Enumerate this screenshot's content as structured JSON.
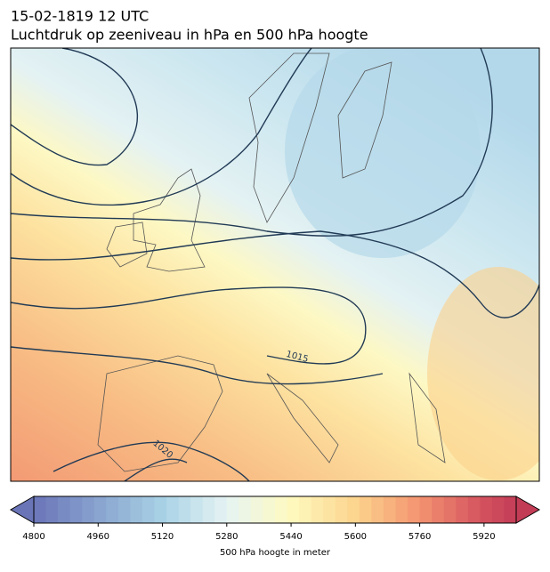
{
  "title": "15-02-1819 12 UTC",
  "subtitle": "Luchtdruk op zeeniveau in hPa en 500 hPa hoogte",
  "map": {
    "contour_labels": [
      "1015",
      "1020"
    ]
  },
  "colorbar": {
    "label": "500 hPa hoogte in meter",
    "range": [
      4800,
      6000
    ],
    "ticks": [
      4800,
      4960,
      5120,
      5280,
      5440,
      5600,
      5760,
      5920
    ]
  }
}
